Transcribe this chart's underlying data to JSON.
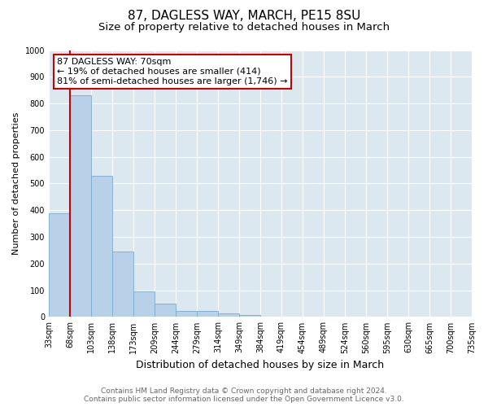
{
  "title": "87, DAGLESS WAY, MARCH, PE15 8SU",
  "subtitle": "Size of property relative to detached houses in March",
  "xlabel": "Distribution of detached houses by size in March",
  "ylabel": "Number of detached properties",
  "bin_labels": [
    "33sqm",
    "68sqm",
    "103sqm",
    "138sqm",
    "173sqm",
    "209sqm",
    "244sqm",
    "279sqm",
    "314sqm",
    "349sqm",
    "384sqm",
    "419sqm",
    "454sqm",
    "489sqm",
    "524sqm",
    "560sqm",
    "595sqm",
    "630sqm",
    "665sqm",
    "700sqm",
    "735sqm"
  ],
  "bar_values": [
    390,
    830,
    530,
    245,
    97,
    50,
    22,
    22,
    15,
    8,
    0,
    0,
    0,
    0,
    0,
    0,
    0,
    0,
    0,
    0
  ],
  "bar_color": "#b8d0e8",
  "bar_edge_color": "#7aaad0",
  "vline_x": 1,
  "vline_color": "#cc0000",
  "annotation_text": "87 DAGLESS WAY: 70sqm\n← 19% of detached houses are smaller (414)\n81% of semi-detached houses are larger (1,746) →",
  "annotation_box_color": "#ffffff",
  "annotation_box_edge": "#cc0000",
  "ylim": [
    0,
    1000
  ],
  "yticks": [
    0,
    100,
    200,
    300,
    400,
    500,
    600,
    700,
    800,
    900,
    1000
  ],
  "plot_bg_color": "#dce8f0",
  "footer_line1": "Contains HM Land Registry data © Crown copyright and database right 2024.",
  "footer_line2": "Contains public sector information licensed under the Open Government Licence v3.0.",
  "title_fontsize": 11,
  "subtitle_fontsize": 9.5,
  "xlabel_fontsize": 9,
  "ylabel_fontsize": 8,
  "tick_fontsize": 7,
  "footer_fontsize": 6.5,
  "annotation_fontsize": 8
}
